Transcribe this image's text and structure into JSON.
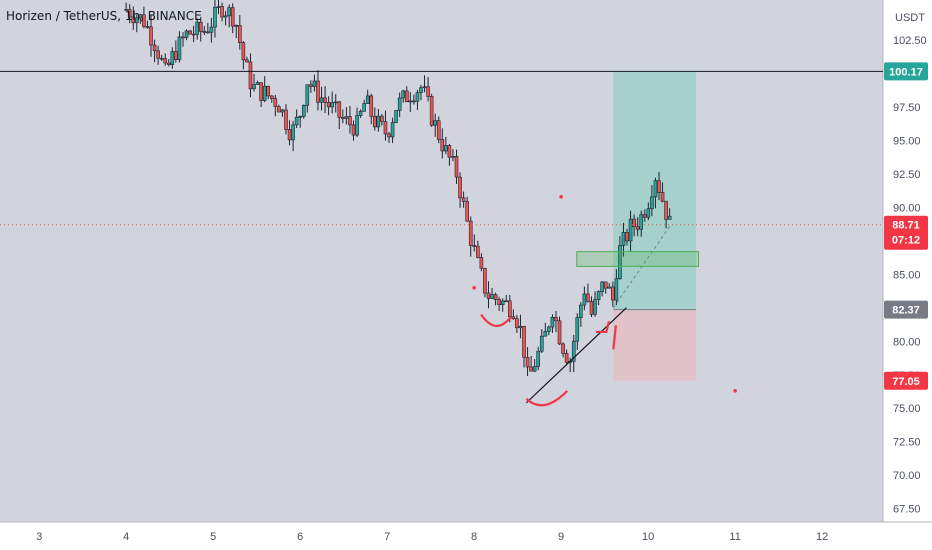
{
  "header": {
    "title": "Horizen / TetherUS, 1h, BINANCE"
  },
  "axis": {
    "currency": "USDT"
  },
  "badges": {
    "resistance": "100.17",
    "current_price": "88.71",
    "countdown": "07:12",
    "entry": "82.37",
    "stop": "77.05"
  },
  "colors": {
    "up": "#26a69a",
    "down": "#ef5350",
    "background": "#ffffff",
    "plot": "#d1d4dc",
    "target_zone": "#9fcfc9",
    "stop_zone": "#e2c0c6",
    "box": "#4caf50",
    "curve": "#f23645"
  },
  "chart_data": {
    "type": "candlestick",
    "title": "Horizen / TetherUS, 1h, BINANCE",
    "ylim": [
      66.5,
      105.5
    ],
    "y_ticks": [
      67.5,
      70.0,
      72.5,
      75.0,
      77.5,
      80.0,
      82.5,
      85.0,
      87.5,
      90.0,
      92.5,
      95.0,
      97.5,
      100.0,
      102.5
    ],
    "y_tick_labels": [
      "67.50",
      "70.00",
      "72.50",
      "75.00",
      "77.50",
      "80.00",
      "82.50",
      "85.00",
      "87.50",
      "90.00",
      "92.50",
      "95.00",
      "97.50",
      "100.00",
      "102.50"
    ],
    "x_ticks": [
      3,
      4,
      5,
      6,
      7,
      8,
      9,
      10,
      11,
      12
    ],
    "x_tick_labels": [
      "3",
      "4",
      "5",
      "6",
      "7",
      "8",
      "9",
      "10",
      "11",
      "12"
    ],
    "xlim": [
      2.55,
      12.7
    ],
    "levels": {
      "resistance": 100.17,
      "current": 88.71,
      "entry": 82.37,
      "stop": 77.05,
      "target": 100.17
    },
    "path": [
      [
        4.0,
        104.8
      ],
      [
        4.2,
        104.0
      ],
      [
        4.35,
        102.0
      ],
      [
        4.45,
        100.0
      ],
      [
        4.55,
        101.5
      ],
      [
        4.7,
        103.0
      ],
      [
        4.9,
        103.2
      ],
      [
        5.0,
        104.0
      ],
      [
        5.1,
        105.0
      ],
      [
        5.25,
        104.2
      ],
      [
        5.35,
        101.0
      ],
      [
        5.45,
        99.0
      ],
      [
        5.6,
        98.5
      ],
      [
        5.75,
        97.8
      ],
      [
        5.9,
        95.5
      ],
      [
        6.0,
        97.0
      ],
      [
        6.08,
        99.5
      ],
      [
        6.2,
        98.5
      ],
      [
        6.35,
        97.5
      ],
      [
        6.5,
        96.5
      ],
      [
        6.65,
        96.0
      ],
      [
        6.75,
        98.0
      ],
      [
        6.85,
        96.5
      ],
      [
        7.0,
        95.5
      ],
      [
        7.1,
        97.5
      ],
      [
        7.25,
        98.5
      ],
      [
        7.4,
        99.0
      ],
      [
        7.5,
        97.0
      ],
      [
        7.65,
        94.5
      ],
      [
        7.8,
        92.5
      ],
      [
        7.93,
        88.5
      ],
      [
        8.05,
        85.5
      ],
      [
        8.15,
        83.5
      ],
      [
        8.3,
        83.0
      ],
      [
        8.45,
        82.5
      ],
      [
        8.55,
        80.5
      ],
      [
        8.62,
        77.0
      ],
      [
        8.7,
        78.5
      ],
      [
        8.8,
        80.0
      ],
      [
        8.9,
        82.5
      ],
      [
        9.0,
        80.0
      ],
      [
        9.1,
        78.5
      ],
      [
        9.2,
        82.0
      ],
      [
        9.27,
        84.0
      ],
      [
        9.35,
        82.0
      ],
      [
        9.5,
        84.5
      ],
      [
        9.6,
        83.0
      ],
      [
        9.65,
        86.5
      ],
      [
        9.8,
        88.5
      ],
      [
        9.9,
        89.0
      ],
      [
        10.0,
        90.5
      ],
      [
        10.08,
        92.5
      ],
      [
        10.15,
        91.0
      ],
      [
        10.25,
        88.7
      ]
    ]
  }
}
